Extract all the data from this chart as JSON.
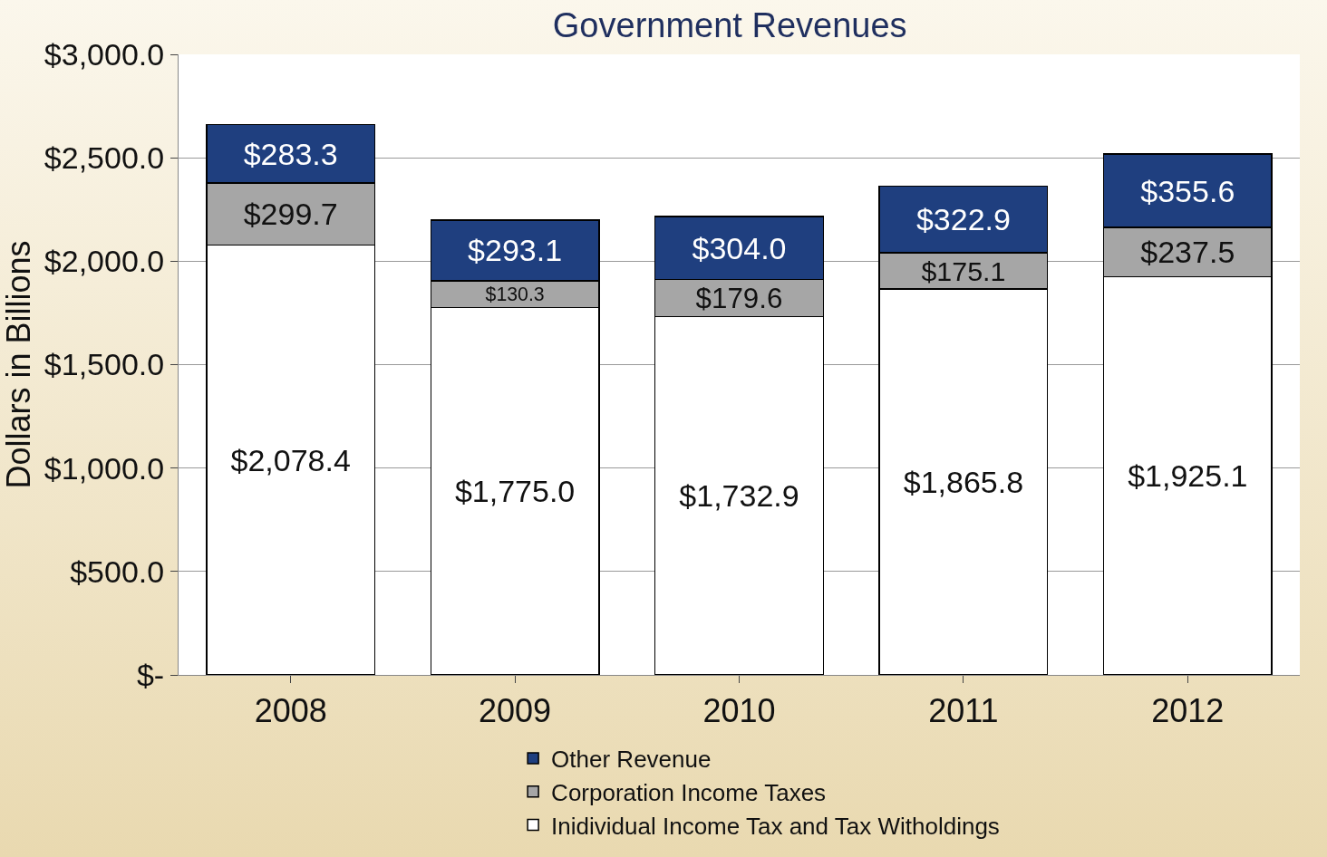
{
  "chart_data": {
    "type": "bar",
    "title": "Government Revenues",
    "ylabel": "Dollars in Billions",
    "categories": [
      "2008",
      "2009",
      "2010",
      "2011",
      "2012"
    ],
    "stacked": true,
    "series": [
      {
        "name": "Inidividual Income Tax and Tax Witholdings",
        "color": "#ffffff",
        "values": [
          2078.4,
          1775.0,
          1732.9,
          1865.8,
          1925.1
        ],
        "value_labels": [
          "$2,078.4",
          "$1,775.0",
          "$1,732.9",
          "$1,865.8",
          "$1,925.1"
        ]
      },
      {
        "name": "Corporation Income Taxes",
        "color": "#a6a6a6",
        "values": [
          299.7,
          130.3,
          179.6,
          175.1,
          237.5
        ],
        "value_labels": [
          "$299.7",
          "$130.3",
          "$179.6",
          "$175.1",
          "$237.5"
        ]
      },
      {
        "name": "Other Revenue",
        "color": "#1f3f7f",
        "values": [
          283.3,
          293.1,
          304.0,
          322.9,
          355.6
        ],
        "value_labels": [
          "$283.3",
          "$293.1",
          "$304.0",
          "$322.9",
          "$355.6"
        ]
      }
    ],
    "ylim": [
      0,
      3000
    ],
    "yticks": [
      {
        "value": 0,
        "label": "$-"
      },
      {
        "value": 500,
        "label": "$500.0"
      },
      {
        "value": 1000,
        "label": "$1,000.0"
      },
      {
        "value": 1500,
        "label": "$1,500.0"
      },
      {
        "value": 2000,
        "label": "$2,000.0"
      },
      {
        "value": 2500,
        "label": "$2,500.0"
      },
      {
        "value": 3000,
        "label": "$3,000.0"
      }
    ],
    "grid": "y",
    "legend": "bottom"
  }
}
